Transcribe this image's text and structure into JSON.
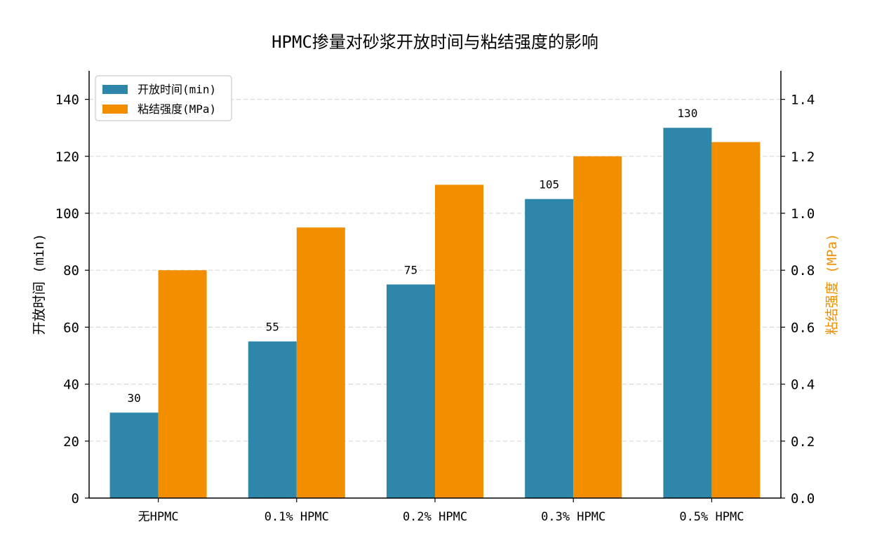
{
  "chart_data": {
    "type": "bar",
    "title": "HPMC掺量对砂浆开放时间与粘结强度的影响",
    "xlabel": "",
    "ylabel": "开放时间 (min)",
    "y2label": "粘结强度 (MPa)",
    "categories": [
      "无HPMC",
      "0.1% HPMC",
      "0.2% HPMC",
      "0.3% HPMC",
      "0.5% HPMC"
    ],
    "series": [
      {
        "name": "开放时间(min)",
        "axis": "left",
        "color": "#2e86ab",
        "values": [
          30,
          55,
          75,
          105,
          130
        ],
        "labels": [
          "30",
          "55",
          "75",
          "105",
          "130"
        ]
      },
      {
        "name": "粘结强度(MPa)",
        "axis": "right",
        "color": "#f18f01",
        "values": [
          0.8,
          0.95,
          1.1,
          1.2,
          1.25
        ]
      }
    ],
    "ylim": [
      0,
      150
    ],
    "y2lim": [
      0,
      1.5
    ],
    "yticks": [
      "0",
      "20",
      "40",
      "60",
      "80",
      "100",
      "120",
      "140"
    ],
    "y2ticks": [
      "0.0",
      "0.2",
      "0.4",
      "0.6",
      "0.8",
      "1.0",
      "1.2",
      "1.4"
    ],
    "grid": "horizontal-dashed",
    "legend_position": "top-left",
    "y2label_color": "#f18f01"
  }
}
